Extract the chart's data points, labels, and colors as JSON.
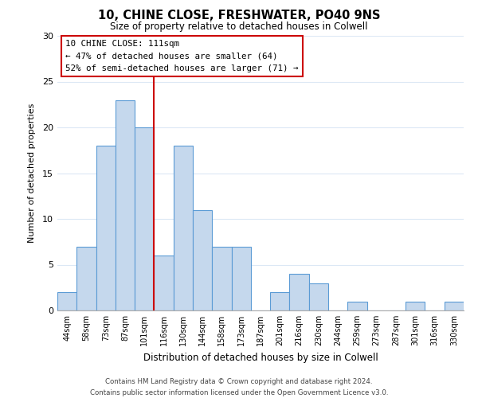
{
  "title1": "10, CHINE CLOSE, FRESHWATER, PO40 9NS",
  "title2": "Size of property relative to detached houses in Colwell",
  "xlabel": "Distribution of detached houses by size in Colwell",
  "ylabel": "Number of detached properties",
  "bar_labels": [
    "44sqm",
    "58sqm",
    "73sqm",
    "87sqm",
    "101sqm",
    "116sqm",
    "130sqm",
    "144sqm",
    "158sqm",
    "173sqm",
    "187sqm",
    "201sqm",
    "216sqm",
    "230sqm",
    "244sqm",
    "259sqm",
    "273sqm",
    "287sqm",
    "301sqm",
    "316sqm",
    "330sqm"
  ],
  "bar_values": [
    2,
    7,
    18,
    23,
    20,
    6,
    18,
    11,
    7,
    7,
    0,
    2,
    4,
    3,
    0,
    1,
    0,
    0,
    1,
    0,
    1
  ],
  "bar_color": "#c5d8ed",
  "bar_edge_color": "#5b9bd5",
  "highlight_line_after_index": 4,
  "highlight_line_color": "#cc0000",
  "ylim": [
    0,
    30
  ],
  "yticks": [
    0,
    5,
    10,
    15,
    20,
    25,
    30
  ],
  "annotation_text_line1": "10 CHINE CLOSE: 111sqm",
  "annotation_text_line2": "← 47% of detached houses are smaller (64)",
  "annotation_text_line3": "52% of semi-detached houses are larger (71) →",
  "annotation_box_color": "#ffffff",
  "annotation_box_edge": "#cc0000",
  "footer1": "Contains HM Land Registry data © Crown copyright and database right 2024.",
  "footer2": "Contains public sector information licensed under the Open Government Licence v3.0.",
  "bg_color": "#ffffff",
  "grid_color": "#dce8f5"
}
